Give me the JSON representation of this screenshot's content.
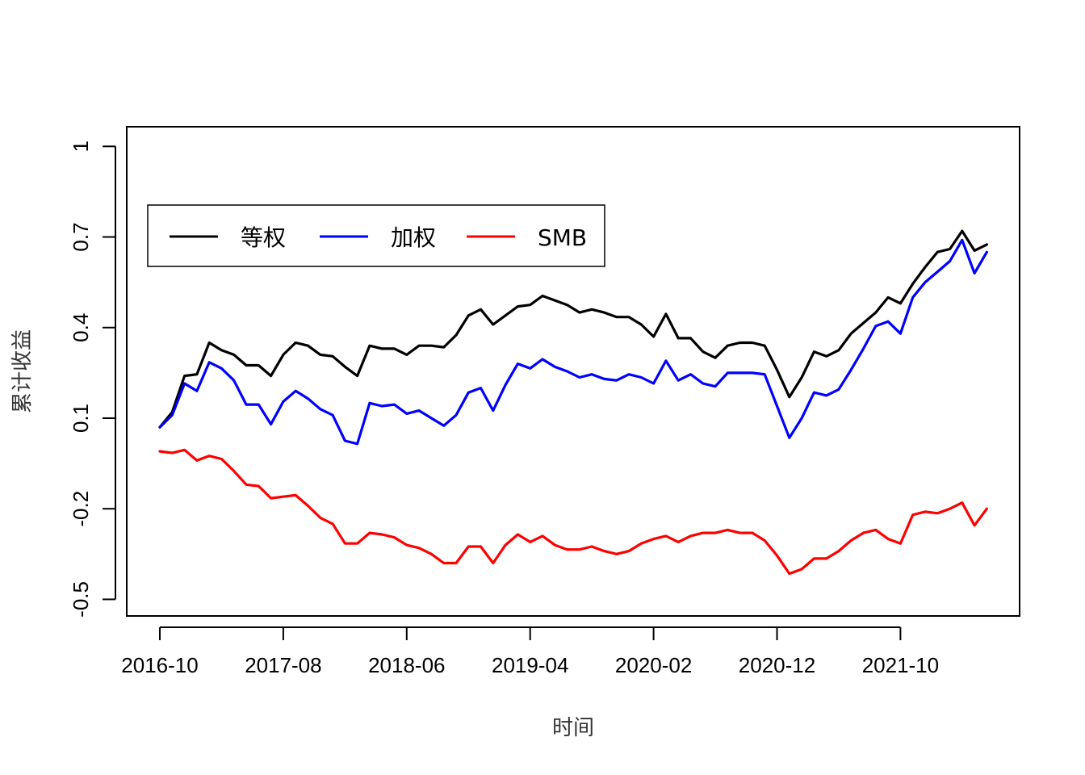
{
  "chart_data": {
    "type": "line",
    "xlabel": "时间",
    "ylabel": "累计收益",
    "x_tick_labels": [
      "2016-10",
      "2017-08",
      "2018-06",
      "2019-04",
      "2020-02",
      "2020-12",
      "2021-10"
    ],
    "y_ticks": [
      -0.5,
      -0.2,
      0.1,
      0.4,
      0.7,
      1
    ],
    "y_tick_labels": [
      "-0.5",
      "-0.2",
      "0.1",
      "0.4",
      "0.7",
      "1"
    ],
    "ylim": [
      -0.555,
      1.065
    ],
    "x_start": "2016-10",
    "x_end": "2022-08",
    "legend_position": "top-left",
    "grid": false,
    "series": [
      {
        "name": "等权",
        "color": "#000000",
        "values": [
          0.07,
          0.12,
          0.24,
          0.245,
          0.35,
          0.325,
          0.31,
          0.275,
          0.275,
          0.24,
          0.31,
          0.35,
          0.34,
          0.31,
          0.305,
          0.27,
          0.24,
          0.34,
          0.33,
          0.33,
          0.31,
          0.34,
          0.34,
          0.335,
          0.375,
          0.44,
          0.46,
          0.41,
          0.44,
          0.47,
          0.475,
          0.505,
          0.49,
          0.475,
          0.45,
          0.46,
          0.45,
          0.435,
          0.435,
          0.41,
          0.37,
          0.445,
          0.365,
          0.365,
          0.32,
          0.3,
          0.34,
          0.35,
          0.35,
          0.34,
          0.26,
          0.17,
          0.235,
          0.32,
          0.305,
          0.325,
          0.38,
          0.415,
          0.45,
          0.5,
          0.48,
          0.545,
          0.6,
          0.65,
          0.66,
          0.72,
          0.655,
          0.675
        ]
      },
      {
        "name": "加权",
        "color": "#0000ff",
        "values": [
          0.07,
          0.11,
          0.215,
          0.19,
          0.285,
          0.265,
          0.225,
          0.145,
          0.145,
          0.08,
          0.155,
          0.19,
          0.165,
          0.13,
          0.11,
          0.025,
          0.015,
          0.15,
          0.14,
          0.145,
          0.115,
          0.125,
          0.1,
          0.075,
          0.11,
          0.185,
          0.2,
          0.125,
          0.21,
          0.28,
          0.265,
          0.295,
          0.27,
          0.255,
          0.235,
          0.245,
          0.23,
          0.225,
          0.245,
          0.235,
          0.215,
          0.29,
          0.225,
          0.245,
          0.215,
          0.205,
          0.25,
          0.25,
          0.25,
          0.245,
          0.14,
          0.035,
          0.1,
          0.185,
          0.175,
          0.195,
          0.26,
          0.33,
          0.405,
          0.42,
          0.38,
          0.5,
          0.55,
          0.585,
          0.62,
          0.69,
          0.58,
          0.65
        ]
      },
      {
        "name": "SMB",
        "color": "#ff0000",
        "values": [
          -0.01,
          -0.015,
          -0.005,
          -0.04,
          -0.025,
          -0.035,
          -0.075,
          -0.12,
          -0.125,
          -0.165,
          -0.16,
          -0.155,
          -0.19,
          -0.23,
          -0.25,
          -0.315,
          -0.315,
          -0.28,
          -0.285,
          -0.295,
          -0.32,
          -0.33,
          -0.35,
          -0.38,
          -0.38,
          -0.325,
          -0.325,
          -0.38,
          -0.32,
          -0.285,
          -0.31,
          -0.29,
          -0.32,
          -0.335,
          -0.335,
          -0.325,
          -0.34,
          -0.35,
          -0.34,
          -0.315,
          -0.3,
          -0.29,
          -0.31,
          -0.29,
          -0.28,
          -0.28,
          -0.27,
          -0.28,
          -0.28,
          -0.305,
          -0.355,
          -0.415,
          -0.4,
          -0.365,
          -0.365,
          -0.34,
          -0.305,
          -0.28,
          -0.27,
          -0.3,
          -0.315,
          -0.22,
          -0.21,
          -0.215,
          -0.2,
          -0.18,
          -0.255,
          -0.2
        ]
      }
    ]
  }
}
